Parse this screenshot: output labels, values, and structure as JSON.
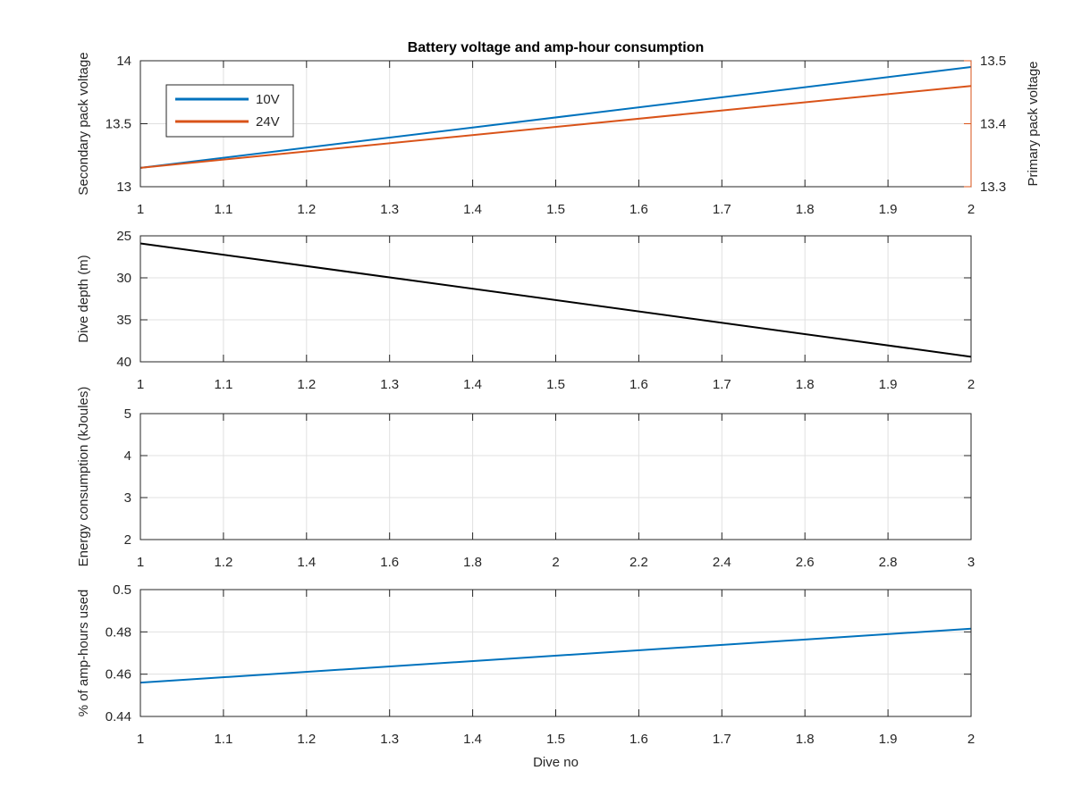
{
  "colors": {
    "series_blue": "#0072BD",
    "series_orange": "#D95319",
    "series_black": "#000000",
    "axis_left_blue": "#0072BD",
    "axis_right_orange": "#D95319",
    "grid": "#e0e0e0",
    "axes": "#262626"
  },
  "chart_data": [
    {
      "type": "line",
      "title": "Battery voltage and amp-hour consumption",
      "xlabel": "",
      "ylabel_left": "Secondary pack voltage",
      "ylabel_right": "Primary pack voltage",
      "xlim": [
        1,
        2
      ],
      "ylim_left": [
        13,
        14
      ],
      "ylim_right": [
        13.3,
        13.5
      ],
      "xticks": [
        "1",
        "1.1",
        "1.2",
        "1.3",
        "1.4",
        "1.5",
        "1.6",
        "1.7",
        "1.8",
        "1.9",
        "2"
      ],
      "yticks_left": [
        "13",
        "13.5",
        "14"
      ],
      "yticks_right": [
        "13.3",
        "13.4",
        "13.5"
      ],
      "grid": true,
      "legend_position": "top-left",
      "series": [
        {
          "name": "10V",
          "axis": "left",
          "color": "#0072BD",
          "x": [
            1,
            2
          ],
          "y": [
            13.15,
            13.95
          ]
        },
        {
          "name": "24V",
          "axis": "right",
          "color": "#D95319",
          "x": [
            1,
            2
          ],
          "y": [
            13.33,
            13.46
          ]
        }
      ]
    },
    {
      "type": "line",
      "title": "",
      "xlabel": "",
      "ylabel": "Dive depth (m)",
      "xlim": [
        1,
        2
      ],
      "ylim": [
        25,
        40
      ],
      "y_reversed": true,
      "xticks": [
        "1",
        "1.1",
        "1.2",
        "1.3",
        "1.4",
        "1.5",
        "1.6",
        "1.7",
        "1.8",
        "1.9",
        "2"
      ],
      "yticks": [
        "25",
        "30",
        "35",
        "40"
      ],
      "grid": true,
      "series": [
        {
          "color": "#000000",
          "x": [
            1,
            2
          ],
          "y": [
            25.9,
            39.4
          ]
        }
      ]
    },
    {
      "type": "line",
      "title": "",
      "xlabel": "",
      "ylabel": "Energy consumption (kJoules)",
      "xlim": [
        1,
        3
      ],
      "ylim": [
        2,
        5
      ],
      "xticks": [
        "1",
        "1.2",
        "1.4",
        "1.6",
        "1.8",
        "2",
        "2.2",
        "2.4",
        "2.6",
        "2.8",
        "3"
      ],
      "yticks": [
        "2",
        "3",
        "4",
        "5"
      ],
      "grid": true,
      "series": []
    },
    {
      "type": "line",
      "title": "",
      "xlabel": "Dive no",
      "ylabel": "% of amp-hours used",
      "xlim": [
        1,
        2
      ],
      "ylim": [
        0.44,
        0.5
      ],
      "xticks": [
        "1",
        "1.1",
        "1.2",
        "1.3",
        "1.4",
        "1.5",
        "1.6",
        "1.7",
        "1.8",
        "1.9",
        "2"
      ],
      "yticks": [
        "0.44",
        "0.46",
        "0.48",
        "0.5"
      ],
      "grid": true,
      "series": [
        {
          "color": "#0072BD",
          "x": [
            1,
            2
          ],
          "y": [
            0.456,
            0.4815
          ]
        }
      ]
    }
  ]
}
